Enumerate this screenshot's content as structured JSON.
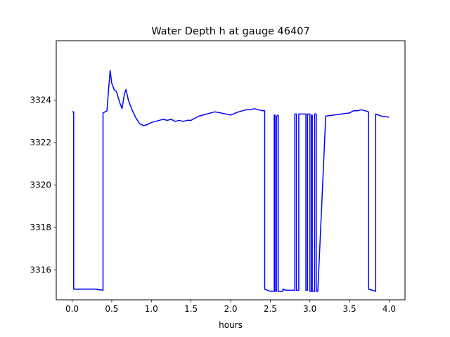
{
  "chart_data": {
    "type": "line",
    "title": "Water Depth h at gauge 46407",
    "xlabel": "hours",
    "ylabel": "",
    "xlim": [
      -0.2,
      4.2
    ],
    "ylim": [
      3314.6,
      3326.8
    ],
    "xticks": [
      0.0,
      0.5,
      1.0,
      1.5,
      2.0,
      2.5,
      3.0,
      3.5,
      4.0
    ],
    "xtick_labels": [
      "0.0",
      "0.5",
      "1.0",
      "1.5",
      "2.0",
      "2.5",
      "3.0",
      "3.5",
      "4.0"
    ],
    "yticks": [
      3316,
      3318,
      3320,
      3322,
      3324
    ],
    "ytick_labels": [
      "3316",
      "3318",
      "3320",
      "3322",
      "3324"
    ],
    "grid": false,
    "series": [
      {
        "color": "#0000ff",
        "x": [
          0.0,
          0.02,
          0.02,
          0.1,
          0.2,
          0.3,
          0.39,
          0.39,
          0.44,
          0.46,
          0.48,
          0.5,
          0.53,
          0.56,
          0.6,
          0.63,
          0.66,
          0.68,
          0.71,
          0.75,
          0.8,
          0.85,
          0.9,
          0.95,
          1.0,
          1.05,
          1.1,
          1.15,
          1.2,
          1.25,
          1.3,
          1.35,
          1.4,
          1.45,
          1.5,
          1.55,
          1.6,
          1.7,
          1.8,
          1.85,
          1.9,
          2.0,
          2.1,
          2.15,
          2.2,
          2.25,
          2.3,
          2.4,
          2.43,
          2.43,
          2.5,
          2.55,
          2.55,
          2.56,
          2.56,
          2.58,
          2.58,
          2.6,
          2.6,
          2.66,
          2.66,
          2.7,
          2.8,
          2.81,
          2.81,
          2.83,
          2.83,
          2.86,
          2.86,
          2.95,
          2.95,
          2.97,
          2.97,
          3.0,
          3.0,
          3.02,
          3.02,
          3.03,
          3.03,
          3.06,
          3.06,
          3.08,
          3.08,
          3.1,
          3.2,
          3.3,
          3.4,
          3.5,
          3.55,
          3.6,
          3.65,
          3.7,
          3.74,
          3.74,
          3.83,
          3.83,
          3.9,
          4.0
        ],
        "y": [
          3323.45,
          3323.45,
          3315.1,
          3315.1,
          3315.1,
          3315.1,
          3315.05,
          3323.4,
          3323.5,
          3324.5,
          3325.4,
          3324.8,
          3324.5,
          3324.4,
          3323.9,
          3323.6,
          3324.3,
          3324.5,
          3324.0,
          3323.6,
          3323.2,
          3322.9,
          3322.8,
          3322.85,
          3322.95,
          3323.0,
          3323.05,
          3323.1,
          3323.05,
          3323.1,
          3323.0,
          3323.05,
          3323.0,
          3323.05,
          3323.05,
          3323.15,
          3323.25,
          3323.35,
          3323.45,
          3323.42,
          3323.38,
          3323.3,
          3323.45,
          3323.5,
          3323.55,
          3323.55,
          3323.6,
          3323.5,
          3323.5,
          3315.1,
          3315.0,
          3315.0,
          3323.3,
          3323.3,
          3315.0,
          3315.0,
          3323.25,
          3323.3,
          3315.0,
          3315.0,
          3315.1,
          3315.05,
          3315.05,
          3315.05,
          3323.35,
          3323.35,
          3315.05,
          3315.05,
          3323.35,
          3323.35,
          3315.05,
          3315.05,
          3323.35,
          3323.35,
          3315.0,
          3315.0,
          3323.3,
          3323.3,
          3315.0,
          3315.0,
          3323.35,
          3323.35,
          3315.0,
          3315.0,
          3323.25,
          3323.3,
          3323.35,
          3323.4,
          3323.5,
          3323.5,
          3323.55,
          3323.5,
          3323.45,
          3315.1,
          3315.0,
          3323.35,
          3323.25,
          3323.2
        ]
      }
    ]
  }
}
